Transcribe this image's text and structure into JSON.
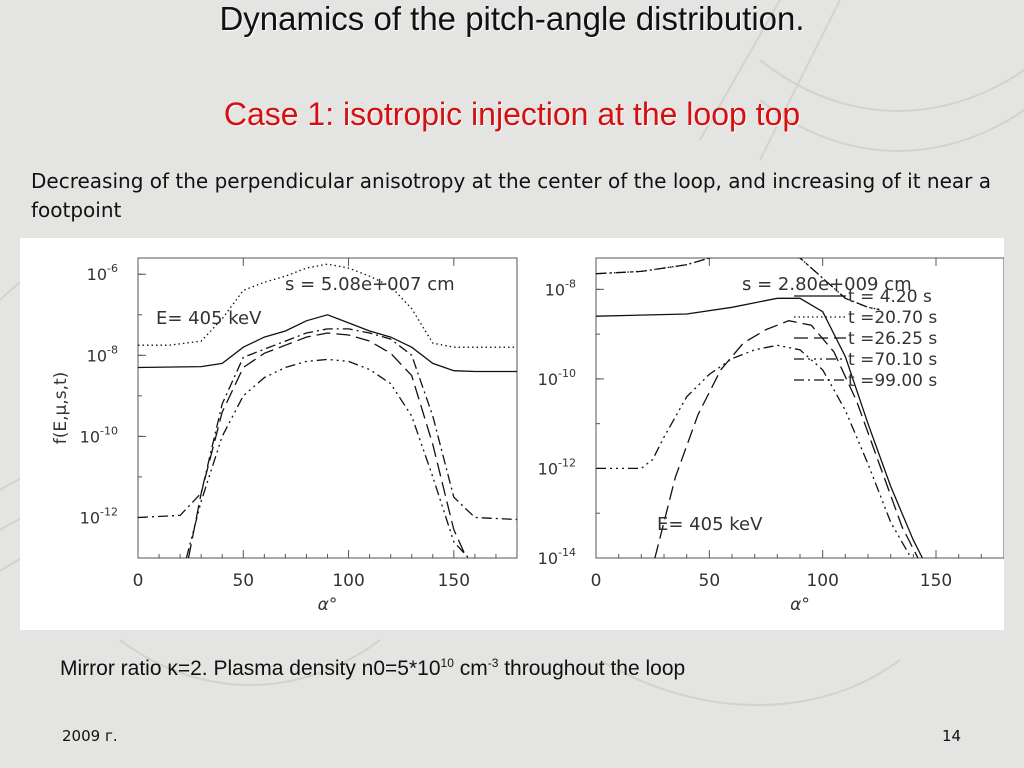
{
  "slide": {
    "title": "Dynamics of the pitch-angle distribution.",
    "subtitle": "Case 1: isotropic injection at the loop top",
    "description": "Decreasing of the perpendicular anisotropy at the center of the loop, and increasing of it near a footpoint",
    "caption_prefix": "Mirror ratio κ=2. Plasma density n0=5*10",
    "caption_exp1": "10",
    "caption_mid": " cm",
    "caption_exp2": "-3",
    "caption_suffix": " throughout the loop",
    "footer_year": "2009 г.",
    "page_number": "14",
    "title_color": "#111111",
    "subtitle_color": "#d41010"
  },
  "chart_data": [
    {
      "type": "line",
      "annotation_position": "s = 5.08e+007 cm",
      "annotation_energy": "E= 405 keV",
      "xlabel": "α°",
      "ylabel": "f(E,μ,s,t)",
      "xlim": [
        0,
        180
      ],
      "ylim_log10": [
        -13,
        -5.6
      ],
      "y_scale": "log",
      "x_ticks": [
        "0",
        "50",
        "100",
        "150"
      ],
      "y_tick_exponents": [
        "-6",
        "-8",
        "-10",
        "-12"
      ],
      "series": [
        {
          "dash": "solid",
          "x": [
            0,
            30,
            40,
            50,
            60,
            70,
            80,
            90,
            100,
            110,
            120,
            130,
            140,
            150,
            160,
            180
          ],
          "log10y": [
            -8.3,
            -8.28,
            -8.2,
            -7.8,
            -7.55,
            -7.4,
            -7.15,
            -7.0,
            -7.2,
            -7.4,
            -7.55,
            -7.8,
            -8.2,
            -8.38,
            -8.4,
            -8.4
          ]
        },
        {
          "dash": "dot",
          "x": [
            0,
            15,
            30,
            40,
            50,
            60,
            70,
            80,
            90,
            100,
            110,
            120,
            130,
            140,
            150,
            160,
            180
          ],
          "log10y": [
            -7.75,
            -7.75,
            -7.65,
            -7.1,
            -6.4,
            -6.2,
            -6.05,
            -5.85,
            -5.75,
            -5.85,
            -6.05,
            -6.3,
            -6.85,
            -7.7,
            -7.8,
            -7.8,
            -7.8
          ]
        },
        {
          "dash": "dashdot",
          "x": [
            0,
            20,
            30,
            40,
            50,
            60,
            70,
            80,
            90,
            100,
            110,
            120,
            130,
            140,
            150,
            160,
            180
          ],
          "log10y": [
            -12.0,
            -11.95,
            -11.4,
            -9.2,
            -8.05,
            -7.85,
            -7.65,
            -7.45,
            -7.35,
            -7.35,
            -7.45,
            -7.6,
            -8.0,
            -9.5,
            -11.5,
            -12.0,
            -12.05
          ]
        },
        {
          "dash": "dashdotdotdot",
          "x": [
            23,
            30,
            40,
            50,
            60,
            70,
            80,
            90,
            100,
            110,
            120,
            130,
            140,
            150,
            157
          ],
          "log10y": [
            -13.0,
            -11.6,
            -10.0,
            -9.0,
            -8.55,
            -8.3,
            -8.15,
            -8.1,
            -8.15,
            -8.35,
            -8.7,
            -9.5,
            -11.0,
            -12.6,
            -13.0
          ]
        },
        {
          "dash": "longdash",
          "x": [
            24,
            30,
            40,
            50,
            60,
            70,
            80,
            90,
            100,
            110,
            120,
            130,
            140,
            150,
            156
          ],
          "log10y": [
            -13.0,
            -11.4,
            -9.4,
            -8.3,
            -7.95,
            -7.75,
            -7.55,
            -7.45,
            -7.5,
            -7.65,
            -7.95,
            -8.5,
            -10.2,
            -12.3,
            -13.0
          ]
        }
      ]
    },
    {
      "type": "line",
      "annotation_position": "s = 2.80e+009 cm",
      "annotation_energy": "E= 405 keV",
      "xlabel": "α°",
      "xlim": [
        0,
        180
      ],
      "ylim_log10": [
        -14,
        -7.3
      ],
      "y_scale": "log",
      "x_ticks": [
        "0",
        "50",
        "100",
        "150"
      ],
      "y_tick_exponents": [
        "-8",
        "-10",
        "-12",
        "-14"
      ],
      "legend": [
        {
          "label": "t = 4.20 s",
          "dash": "solid"
        },
        {
          "label": "t =20.70 s",
          "dash": "dot"
        },
        {
          "label": "t =26.25 s",
          "dash": "longdash"
        },
        {
          "label": "t =70.10 s",
          "dash": "dashdotdotdot"
        },
        {
          "label": "t =99.00 s",
          "dash": "dashdot"
        }
      ],
      "series": [
        {
          "dash": "solid",
          "x": [
            0,
            40,
            60,
            80,
            90,
            100,
            110,
            120,
            130,
            140,
            144
          ],
          "log10y": [
            -8.6,
            -8.55,
            -8.4,
            -8.2,
            -8.2,
            -8.5,
            -9.5,
            -11.0,
            -12.4,
            -13.6,
            -14.0
          ]
        },
        {
          "dash": "dot",
          "x": [
            0,
            20,
            40,
            50,
            60,
            70,
            80,
            90,
            100,
            110,
            120,
            125
          ],
          "log10y": [
            -7.65,
            -7.6,
            -7.45,
            -7.3,
            -7.25,
            -7.2,
            -7.2,
            -7.3,
            -7.75,
            -8.2,
            -8.4,
            -8.45
          ]
        },
        {
          "dash": "dashdot",
          "x": [
            0,
            20,
            40,
            50,
            60,
            70,
            80,
            90,
            100,
            110,
            120,
            125
          ],
          "log10y": [
            -7.65,
            -7.6,
            -7.45,
            -7.3,
            -7.25,
            -7.2,
            -7.2,
            -7.3,
            -7.75,
            -8.2,
            -8.4,
            -8.45
          ]
        },
        {
          "dash": "longdash",
          "x": [
            26,
            35,
            45,
            55,
            65,
            75,
            85,
            95,
            105,
            115,
            125,
            135,
            142
          ],
          "log10y": [
            -14.0,
            -12.2,
            -10.8,
            -9.8,
            -9.2,
            -8.9,
            -8.7,
            -8.8,
            -9.4,
            -10.5,
            -11.9,
            -13.3,
            -14.0
          ]
        },
        {
          "dash": "dashdotdotdot",
          "x": [
            0,
            20,
            25,
            30,
            40,
            50,
            60,
            70,
            80,
            90,
            100,
            110,
            120,
            130,
            139
          ],
          "log10y": [
            -12.0,
            -12.0,
            -11.8,
            -11.3,
            -10.4,
            -9.9,
            -9.55,
            -9.35,
            -9.25,
            -9.35,
            -9.8,
            -10.7,
            -11.9,
            -13.2,
            -14.0
          ]
        }
      ]
    }
  ]
}
